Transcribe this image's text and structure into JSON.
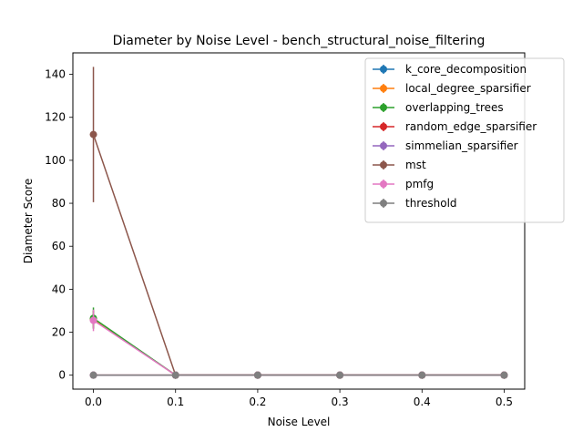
{
  "chart_data": {
    "type": "line",
    "title": "Diameter by Noise Level - bench_structural_noise_filtering",
    "xlabel": "Noise Level",
    "ylabel": "Diameter Score",
    "x": [
      0.0,
      0.1,
      0.2,
      0.3,
      0.4,
      0.5
    ],
    "xlim": [
      -0.025,
      0.525
    ],
    "ylim": [
      -6.5,
      150
    ],
    "xticks": [
      "0.0",
      "0.1",
      "0.2",
      "0.3",
      "0.4",
      "0.5"
    ],
    "yticks": [
      "0",
      "20",
      "40",
      "60",
      "80",
      "100",
      "120",
      "140"
    ],
    "grid": false,
    "legend_position": "top-right",
    "series": [
      {
        "name": "k_core_decomposition",
        "color": "#1f77b4",
        "values": [
          26,
          0,
          0,
          0,
          0,
          0
        ],
        "error": [
          4,
          0,
          0,
          0,
          0,
          0
        ]
      },
      {
        "name": "local_degree_sparsifier",
        "color": "#ff7f0e",
        "values": [
          26,
          0,
          0,
          0,
          0,
          0
        ],
        "error": [
          4,
          0,
          0,
          0,
          0,
          0
        ]
      },
      {
        "name": "overlapping_trees",
        "color": "#2ca02c",
        "values": [
          26.5,
          0,
          0,
          0,
          0,
          0
        ],
        "error": [
          5,
          0,
          0,
          0,
          0,
          0
        ]
      },
      {
        "name": "random_edge_sparsifier",
        "color": "#d62728",
        "values": [
          0,
          0,
          0,
          0,
          0,
          0
        ],
        "error": [
          0,
          0,
          0,
          0,
          0,
          0
        ]
      },
      {
        "name": "simmelian_sparsifier",
        "color": "#9467bd",
        "values": [
          0,
          0,
          0,
          0,
          0,
          0
        ],
        "error": [
          0,
          0,
          0,
          0,
          0,
          0
        ]
      },
      {
        "name": "mst",
        "color": "#8c564b",
        "values": [
          112,
          0,
          0,
          0,
          0,
          0
        ],
        "error": [
          31.5,
          0,
          0,
          0,
          0,
          0
        ]
      },
      {
        "name": "pmfg",
        "color": "#e377c2",
        "values": [
          25.5,
          0,
          0,
          0,
          0,
          0
        ],
        "error": [
          5,
          0,
          0,
          0,
          0,
          0
        ]
      },
      {
        "name": "threshold",
        "color": "#7f7f7f",
        "values": [
          0,
          0,
          0,
          0,
          0,
          0
        ],
        "error": [
          0,
          0,
          0,
          0,
          0,
          0
        ]
      }
    ]
  }
}
